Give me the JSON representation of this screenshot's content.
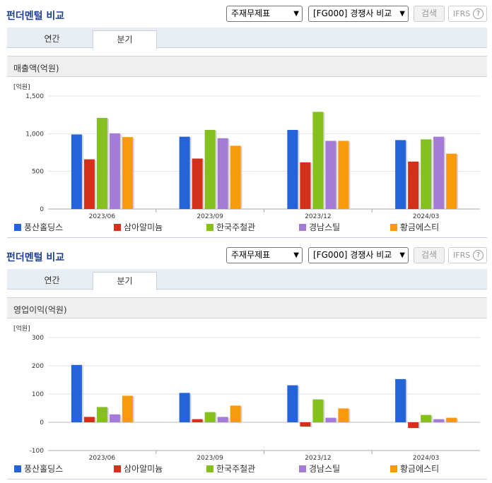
{
  "panels": [
    {
      "title": "펀더멘털 비교",
      "select1": "주재무제표",
      "select2": "[FG000] 경쟁사 비교",
      "search_label": "검색",
      "ifrs_label": "IFRS",
      "help_label": "?",
      "tabs": [
        {
          "label": "연간"
        },
        {
          "label": "분기"
        }
      ],
      "section_label": "매출액(억원)"
    },
    {
      "title": "펀더멘털 비교",
      "select1": "주재무제표",
      "select2": "[FG000] 경쟁사 비교",
      "search_label": "검색",
      "ifrs_label": "IFRS",
      "help_label": "?",
      "tabs": [
        {
          "label": "연간"
        },
        {
          "label": "분기"
        }
      ],
      "section_label": "영업이익(억원)"
    }
  ],
  "legend": [
    {
      "name": "풍산홀딩스",
      "color": "#2563d9"
    },
    {
      "name": "삼아알미늄",
      "color": "#d3311a"
    },
    {
      "name": "한국주철관",
      "color": "#86c01e"
    },
    {
      "name": "경남스틸",
      "color": "#a57bd8"
    },
    {
      "name": "황금에스티",
      "color": "#f79a0e"
    }
  ],
  "chart_data": [
    {
      "type": "bar",
      "unit_label": "[억원]",
      "categories": [
        "2023/06",
        "2023/09",
        "2023/12",
        "2024/03"
      ],
      "ylim": [
        0,
        1500
      ],
      "yticks": [
        0,
        500,
        1000,
        1500
      ],
      "ytick_labels": [
        "0",
        "500",
        "1,000",
        "1,500"
      ],
      "series": [
        {
          "name": "풍산홀딩스",
          "values": [
            990,
            960,
            1050,
            915
          ]
        },
        {
          "name": "삼아알미늄",
          "values": [
            660,
            670,
            620,
            630
          ]
        },
        {
          "name": "한국주철관",
          "values": [
            1210,
            1050,
            1290,
            925
          ]
        },
        {
          "name": "경남스틸",
          "values": [
            1005,
            940,
            905,
            960
          ]
        },
        {
          "name": "황금에스티",
          "values": [
            955,
            840,
            905,
            735
          ]
        }
      ]
    },
    {
      "type": "bar",
      "unit_label": "[억원]",
      "categories": [
        "2023/06",
        "2023/09",
        "2023/12",
        "2024/03"
      ],
      "ylim": [
        -100,
        300
      ],
      "yticks": [
        -100,
        0,
        100,
        200,
        300
      ],
      "ytick_labels": [
        "-100",
        "0",
        "100",
        "200",
        "300"
      ],
      "series": [
        {
          "name": "풍산홀딩스",
          "values": [
            203,
            104,
            131,
            153
          ]
        },
        {
          "name": "삼아알미늄",
          "values": [
            19,
            11,
            -15,
            -20
          ]
        },
        {
          "name": "한국주철관",
          "values": [
            54,
            36,
            81,
            26
          ]
        },
        {
          "name": "경남스틸",
          "values": [
            28,
            19,
            16,
            11
          ]
        },
        {
          "name": "황금에스티",
          "values": [
            94,
            59,
            49,
            16
          ]
        }
      ]
    }
  ]
}
